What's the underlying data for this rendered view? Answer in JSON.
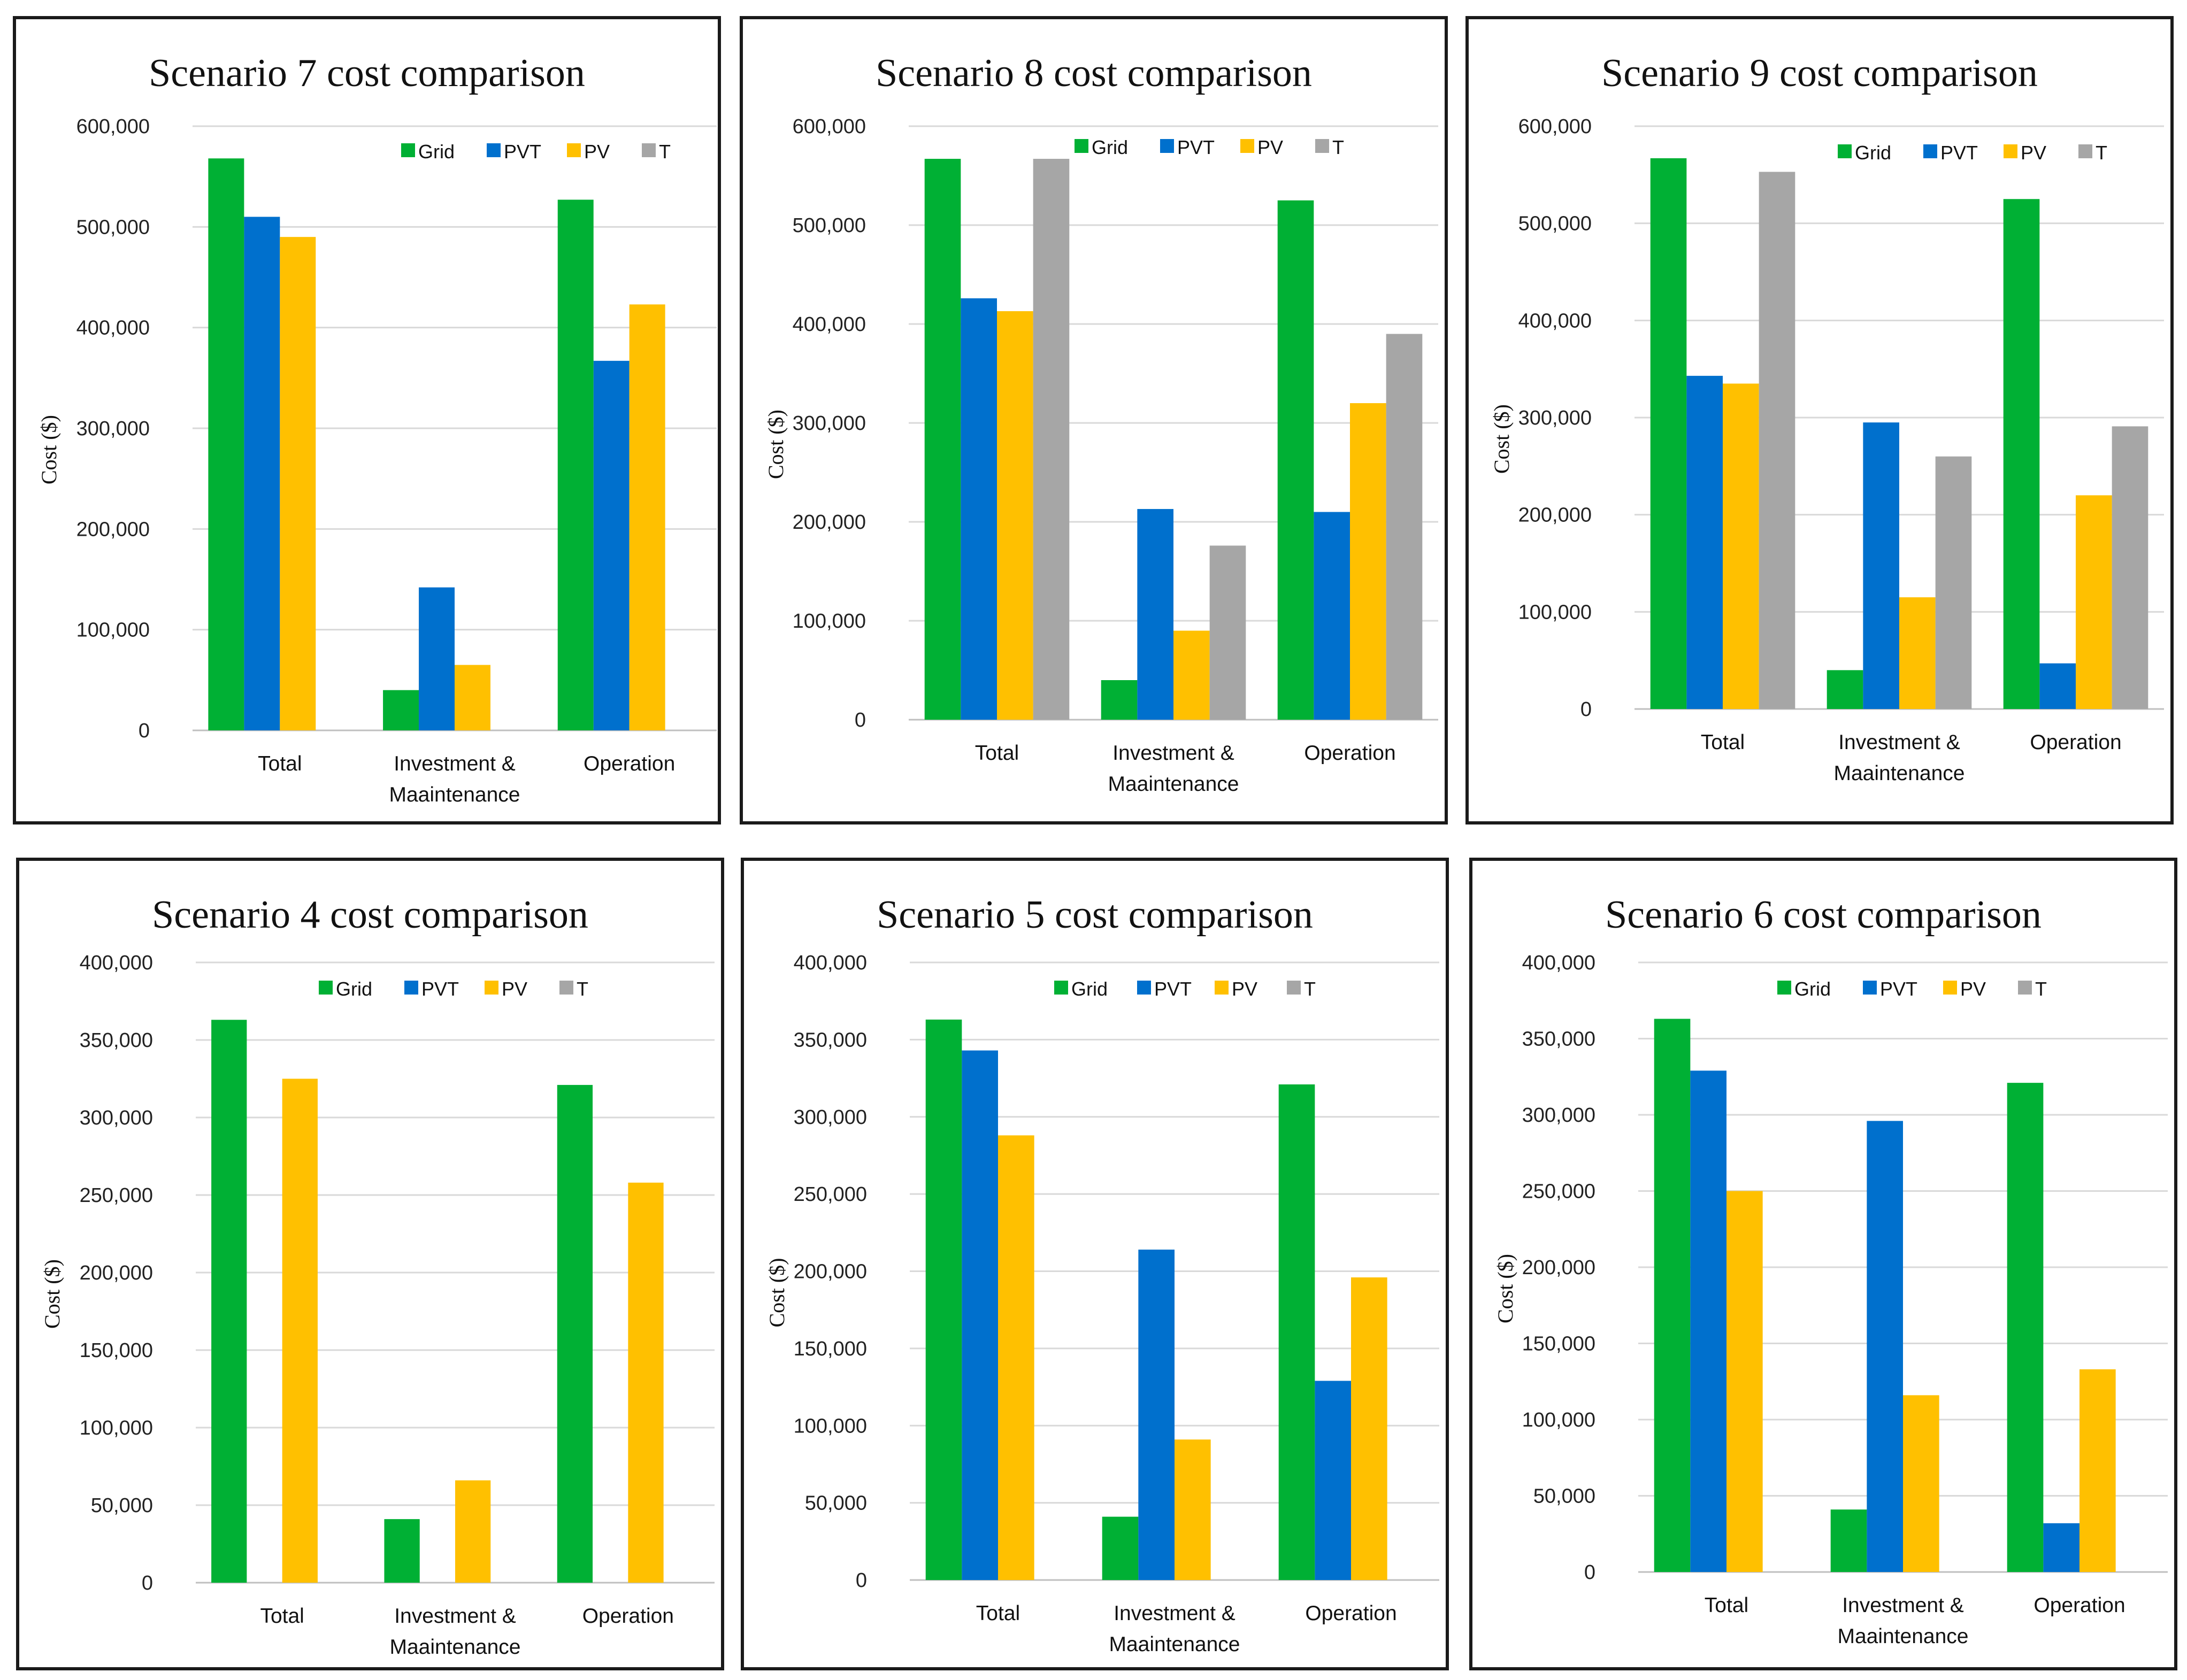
{
  "colors": {
    "Grid": "#00b034",
    "PVT": "#0070cd",
    "PV": "#ffc000",
    "T": "#a6a6a6"
  },
  "chart_data": [
    {
      "type": "bar",
      "title": "Scenario 7 cost comparison",
      "ylabel": "Cost ($)",
      "ylim": [
        0,
        600000
      ],
      "yticks": [
        0,
        100000,
        200000,
        300000,
        400000,
        500000,
        600000
      ],
      "ytick_labels": [
        "0",
        "100,000",
        "200,000",
        "300,000",
        "400,000",
        "500,000",
        "600,000"
      ],
      "categories": [
        [
          "Total"
        ],
        [
          "Investment &",
          "Maaintenance"
        ],
        [
          "Operation"
        ]
      ],
      "legend": [
        "Grid",
        "PVT",
        "PV",
        "T"
      ],
      "series": [
        {
          "name": "Grid",
          "values": [
            568000,
            40000,
            527000
          ]
        },
        {
          "name": "PVT",
          "values": [
            510000,
            142000,
            367000
          ]
        },
        {
          "name": "PV",
          "values": [
            490000,
            65000,
            423000
          ]
        },
        {
          "name": "T",
          "values": [
            0,
            0,
            0
          ]
        }
      ]
    },
    {
      "type": "bar",
      "title": "Scenario 8 cost comparison",
      "ylabel": "Cost ($)",
      "ylim": [
        0,
        600000
      ],
      "yticks": [
        0,
        100000,
        200000,
        300000,
        400000,
        500000,
        600000
      ],
      "ytick_labels": [
        "0",
        "100,000",
        "200,000",
        "300,000",
        "400,000",
        "500,000",
        "600,000"
      ],
      "categories": [
        [
          "Total"
        ],
        [
          "Investment &",
          "Maaintenance"
        ],
        [
          "Operation"
        ]
      ],
      "legend": [
        "Grid",
        "PVT",
        "PV",
        "T"
      ],
      "series": [
        {
          "name": "Grid",
          "values": [
            567000,
            40000,
            525000
          ]
        },
        {
          "name": "PVT",
          "values": [
            426000,
            213000,
            210000
          ]
        },
        {
          "name": "PV",
          "values": [
            413000,
            90000,
            320000
          ]
        },
        {
          "name": "T",
          "values": [
            567000,
            176000,
            390000
          ]
        }
      ]
    },
    {
      "type": "bar",
      "title": "Scenario 9 cost comparison",
      "ylabel": "Cost ($)",
      "ylim": [
        0,
        600000
      ],
      "yticks": [
        0,
        100000,
        200000,
        300000,
        400000,
        500000,
        600000
      ],
      "ytick_labels": [
        "0",
        "100,000",
        "200,000",
        "300,000",
        "400,000",
        "500,000",
        "600,000"
      ],
      "categories": [
        [
          "Total"
        ],
        [
          "Investment &",
          "Maaintenance"
        ],
        [
          "Operation"
        ]
      ],
      "legend": [
        "Grid",
        "PVT",
        "PV",
        "T"
      ],
      "series": [
        {
          "name": "Grid",
          "values": [
            567000,
            40000,
            525000
          ]
        },
        {
          "name": "PVT",
          "values": [
            343000,
            295000,
            47000
          ]
        },
        {
          "name": "PV",
          "values": [
            335000,
            115000,
            220000
          ]
        },
        {
          "name": "T",
          "values": [
            553000,
            260000,
            291000
          ]
        }
      ]
    },
    {
      "type": "bar",
      "title": "Scenario 4 cost comparison",
      "ylabel": "Cost ($)",
      "ylim": [
        0,
        400000
      ],
      "yticks": [
        0,
        50000,
        100000,
        150000,
        200000,
        250000,
        300000,
        350000,
        400000
      ],
      "ytick_labels": [
        "0",
        "50,000",
        "100,000",
        "150,000",
        "200,000",
        "250,000",
        "300,000",
        "350,000",
        "400,000"
      ],
      "categories": [
        [
          "Total"
        ],
        [
          "Investment &",
          "Maaintenance"
        ],
        [
          "Operation"
        ]
      ],
      "legend": [
        "Grid",
        "PVT",
        "PV",
        "T"
      ],
      "series": [
        {
          "name": "Grid",
          "values": [
            363000,
            41000,
            321000
          ]
        },
        {
          "name": "PVT",
          "values": [
            0,
            0,
            0
          ]
        },
        {
          "name": "PV",
          "values": [
            325000,
            66000,
            258000
          ]
        },
        {
          "name": "T",
          "values": [
            0,
            0,
            0
          ]
        }
      ]
    },
    {
      "type": "bar",
      "title": "Scenario 5 cost comparison",
      "ylabel": "Cost ($)",
      "ylim": [
        0,
        400000
      ],
      "yticks": [
        0,
        50000,
        100000,
        150000,
        200000,
        250000,
        300000,
        350000,
        400000
      ],
      "ytick_labels": [
        "0",
        "50,000",
        "100,000",
        "150,000",
        "200,000",
        "250,000",
        "300,000",
        "350,000",
        "400,000"
      ],
      "categories": [
        [
          "Total"
        ],
        [
          "Investment &",
          "Maaintenance"
        ],
        [
          "Operation"
        ]
      ],
      "legend": [
        "Grid",
        "PVT",
        "PV",
        "T"
      ],
      "series": [
        {
          "name": "Grid",
          "values": [
            363000,
            41000,
            321000
          ]
        },
        {
          "name": "PVT",
          "values": [
            343000,
            214000,
            129000
          ]
        },
        {
          "name": "PV",
          "values": [
            288000,
            91000,
            196000
          ]
        },
        {
          "name": "T",
          "values": [
            0,
            0,
            0
          ]
        }
      ]
    },
    {
      "type": "bar",
      "title": "Scenario 6 cost comparison",
      "ylabel": "Cost ($)",
      "ylim": [
        0,
        400000
      ],
      "yticks": [
        0,
        50000,
        100000,
        150000,
        200000,
        250000,
        300000,
        350000,
        400000
      ],
      "ytick_labels": [
        "0",
        "50,000",
        "100,000",
        "150,000",
        "200,000",
        "250,000",
        "300,000",
        "350,000",
        "400,000"
      ],
      "categories": [
        [
          "Total"
        ],
        [
          "Investment &",
          "Maaintenance"
        ],
        [
          "Operation"
        ]
      ],
      "legend": [
        "Grid",
        "PVT",
        "PV",
        "T"
      ],
      "series": [
        {
          "name": "Grid",
          "values": [
            363000,
            41000,
            321000
          ]
        },
        {
          "name": "PVT",
          "values": [
            329000,
            296000,
            32000
          ]
        },
        {
          "name": "PV",
          "values": [
            250000,
            116000,
            133000
          ]
        },
        {
          "name": "T",
          "values": [
            0,
            0,
            0
          ]
        }
      ]
    }
  ]
}
